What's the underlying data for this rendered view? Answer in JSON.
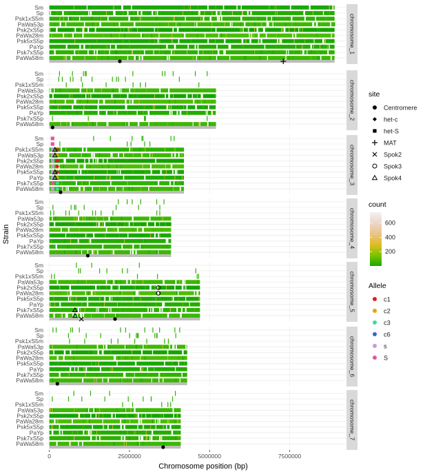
{
  "chart_data": {
    "type": "heatmap",
    "xlabel": "Chromosome position (bp)",
    "ylabel": "Strain",
    "x_ticks": [
      0,
      2500000,
      5000000,
      7500000
    ],
    "x_tick_labels": [
      "0",
      "2500000",
      "5000000",
      "7500000"
    ],
    "xlim": [
      -100000,
      9250000
    ],
    "strains": [
      "Sm",
      "Sp",
      "Psk1xS5m",
      "PaWa53p",
      "Psk2xS5p",
      "PaWa28m",
      "Psk5xS5p",
      "PaYp",
      "Psk7xS5p",
      "PaWa58m"
    ],
    "chromosomes": [
      {
        "name": "chromosome_1",
        "length": 8900000,
        "centromere": 2200000,
        "sites": [
          {
            "site": "MAT",
            "x": 7300000
          }
        ],
        "present_strains": [
          "Sm",
          "Sp",
          "Psk1xS5m",
          "PaWa53p",
          "Psk2xS5p",
          "PaWa28m",
          "Psk5xS5p",
          "PaYp",
          "Psk7xS5p",
          "PaWa58m"
        ]
      },
      {
        "name": "chromosome_2",
        "length": 5200000,
        "centromere": 100000,
        "sites": [],
        "present_strains": [
          "PaWa53p",
          "Psk2xS5p",
          "PaWa28m",
          "Psk5xS5p",
          "PaYp",
          "PaWa58m"
        ]
      },
      {
        "name": "chromosome_3",
        "length": 4200000,
        "centromere": 350000,
        "sites": [
          {
            "site": "het-S",
            "x": 100000,
            "strains": [
              "Sm",
              "Sp",
              "Psk1xS5m",
              "PaWa53p",
              "Psk2xS5p",
              "PaWa28m",
              "Psk5xS5p",
              "PaYp",
              "Psk7xS5p",
              "PaWa58m"
            ]
          },
          {
            "site": "het-c",
            "x": 250000,
            "strains": [
              "Psk1xS5m",
              "PaWa53p",
              "Psk2xS5p",
              "PaWa28m",
              "Psk5xS5p",
              "PaYp",
              "Psk7xS5p",
              "PaWa58m"
            ]
          },
          {
            "site": "Spok4",
            "x": 175000,
            "strains": [
              "Psk1xS5m",
              "PaWa53p",
              "Psk5xS5p",
              "PaYp"
            ]
          }
        ],
        "alleles": [
          {
            "allele": "S",
            "strains": [
              "Sm",
              "Sp",
              "Psk7xS5p"
            ]
          },
          {
            "allele": "s",
            "strains": [
              "Psk1xS5m",
              "PaWa53p",
              "Psk2xS5p",
              "PaWa28m",
              "Psk5xS5p",
              "PaYp",
              "PaWa58m"
            ]
          },
          {
            "allele": "c1",
            "strains": [
              "Sm",
              "Psk1xS5m",
              "Psk2xS5p",
              "PaWa28m",
              "Psk5xS5p"
            ]
          },
          {
            "allele": "c2",
            "strains": [
              "PaWa53p",
              "PaYp"
            ]
          },
          {
            "allele": "c3",
            "strains": [
              "Psk7xS5p",
              "PaWa58m"
            ]
          }
        ],
        "present_strains": [
          "Psk1xS5m",
          "PaWa53p",
          "Psk2xS5p",
          "PaWa28m",
          "Psk5xS5p",
          "PaYp",
          "Psk7xS5p",
          "PaWa58m"
        ]
      },
      {
        "name": "chromosome_4",
        "length": 3800000,
        "centromere": 1200000,
        "sites": [],
        "present_strains": [
          "PaWa53p",
          "Psk2xS5p",
          "PaWa28m",
          "Psk5xS5p",
          "PaYp",
          "Psk7xS5p",
          "PaWa58m"
        ]
      },
      {
        "name": "chromosome_5",
        "length": 4700000,
        "centromere": 2050000,
        "sites": [
          {
            "site": "Spok2",
            "x": 1000000,
            "strains": [
              "PaWa58m"
            ]
          },
          {
            "site": "Spok3",
            "x": 3400000,
            "strains": [
              "Psk2xS5p",
              "PaWa28m"
            ]
          },
          {
            "site": "Spok4",
            "x": 800000,
            "strains": [
              "Psk7xS5p",
              "PaWa58m"
            ]
          }
        ],
        "present_strains": [
          "PaWa53p",
          "Psk2xS5p",
          "PaWa28m",
          "Psk5xS5p",
          "PaYp",
          "Psk7xS5p",
          "PaWa58m"
        ]
      },
      {
        "name": "chromosome_6",
        "length": 4300000,
        "centromere": 250000,
        "sites": [],
        "present_strains": [
          "PaWa53p",
          "Psk2xS5p",
          "PaWa28m",
          "Psk5xS5p",
          "PaYp",
          "Psk7xS5p",
          "PaWa58m"
        ]
      },
      {
        "name": "chromosome_7",
        "length": 4100000,
        "centromere": 3550000,
        "sites": [],
        "present_strains": [
          "PaWa53p",
          "Psk2xS5p",
          "PaWa28m",
          "Psk5xS5p",
          "PaYp",
          "Psk7xS5p",
          "PaWa58m"
        ]
      }
    ],
    "legend_site": {
      "title": "site",
      "items": [
        {
          "label": "Centromere",
          "shape": "circle-filled"
        },
        {
          "label": "het-c",
          "shape": "diamond-filled"
        },
        {
          "label": "het-S",
          "shape": "square-filled"
        },
        {
          "label": "MAT",
          "shape": "plus"
        },
        {
          "label": "Spok2",
          "shape": "cross"
        },
        {
          "label": "Spok3",
          "shape": "circle-open"
        },
        {
          "label": "Spok4",
          "shape": "triangle-open"
        }
      ]
    },
    "legend_count": {
      "title": "count",
      "ticks": [
        200,
        400,
        600
      ],
      "range": [
        0,
        750
      ],
      "colors": [
        "#1aa800",
        "#7cc400",
        "#e3bb24",
        "#e8c48a",
        "#efd6c9",
        "#f2f2f2"
      ]
    },
    "legend_allele": {
      "title": "Allele",
      "items": [
        {
          "label": "c1",
          "color": "#e41a1c"
        },
        {
          "label": "c2",
          "color": "#f59b00"
        },
        {
          "label": "c3",
          "color": "#33e0a0"
        },
        {
          "label": "c6",
          "color": "#3566c9"
        },
        {
          "label": "s",
          "color": "#c29bd9"
        },
        {
          "label": "S",
          "color": "#e6569e"
        }
      ]
    },
    "legend_placement": "right",
    "grid": true
  }
}
